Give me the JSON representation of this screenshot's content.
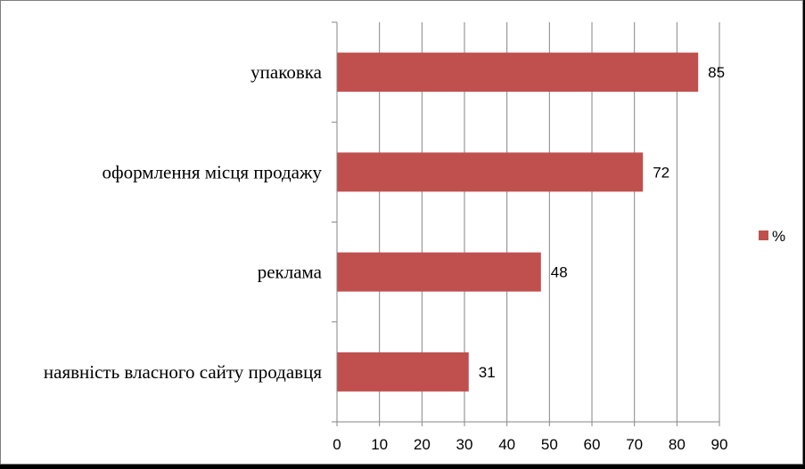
{
  "chart_data": {
    "type": "bar",
    "orientation": "horizontal",
    "categories": [
      "упаковка",
      "оформлення місця продажу",
      "реклама",
      "наявність власного сайту продавця"
    ],
    "series": [
      {
        "name": "%",
        "values": [
          85,
          72,
          48,
          31
        ]
      }
    ],
    "data_labels": [
      "85",
      "72",
      "48",
      "31"
    ],
    "xlim": [
      0,
      90
    ],
    "x_ticks": [
      "0",
      "10",
      "20",
      "30",
      "40",
      "50",
      "60",
      "70",
      "80",
      "90"
    ],
    "grid": "vertical",
    "legend": {
      "entries": [
        "%"
      ],
      "placement": "right"
    },
    "colors": {
      "bar": "#c0504d",
      "grid": "#868686",
      "axis": "#868686"
    }
  }
}
